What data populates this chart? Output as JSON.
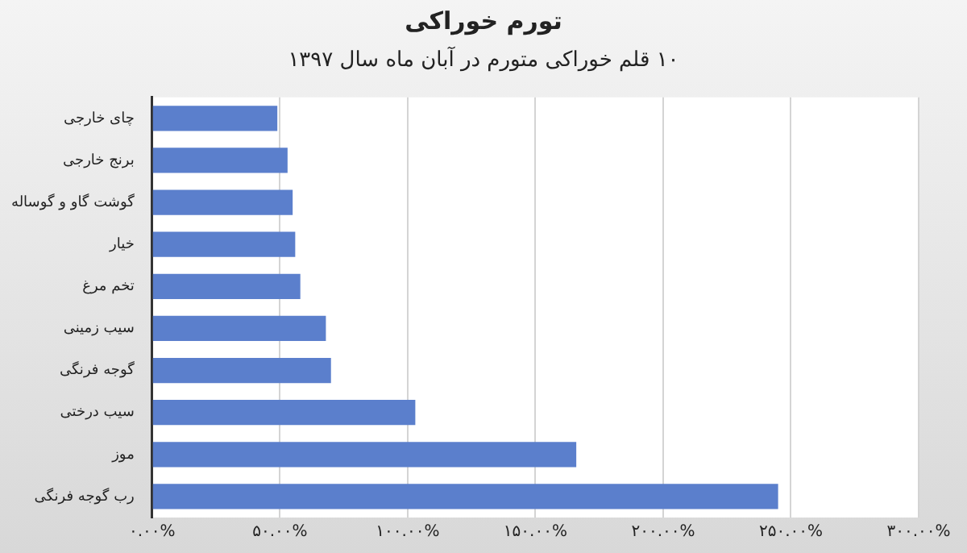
{
  "chart_data": {
    "type": "bar",
    "orientation": "horizontal",
    "title": "تورم خوراکی",
    "subtitle": "۱۰ قلم خوراکی متورم در آبان ماه سال ۱۳۹۷",
    "categories": [
      "چای خارجی",
      "برنج خارجی",
      "گوشت گاو و گوساله",
      "خیار",
      "تخم مرغ",
      "سیب زمینی",
      "گوجه فرنگی",
      "سیب درختی",
      "موز",
      "رب گوجه فرنگی"
    ],
    "values": [
      49,
      53,
      55,
      56,
      58,
      68,
      70,
      103,
      166,
      245
    ],
    "color": "#5b7fcc",
    "xlim": [
      0,
      300
    ],
    "xticks": [
      {
        "value": 0,
        "label": "۰.۰۰%"
      },
      {
        "value": 50,
        "label": "۵۰.۰۰%"
      },
      {
        "value": 100,
        "label": "۱۰۰.۰۰%"
      },
      {
        "value": 150,
        "label": "۱۵۰.۰۰%"
      },
      {
        "value": 200,
        "label": "۲۰۰.۰۰%"
      },
      {
        "value": 250,
        "label": "۲۵۰.۰۰%"
      },
      {
        "value": 300,
        "label": "۳۰۰.۰۰%"
      }
    ],
    "grid": "x",
    "legend": false
  }
}
